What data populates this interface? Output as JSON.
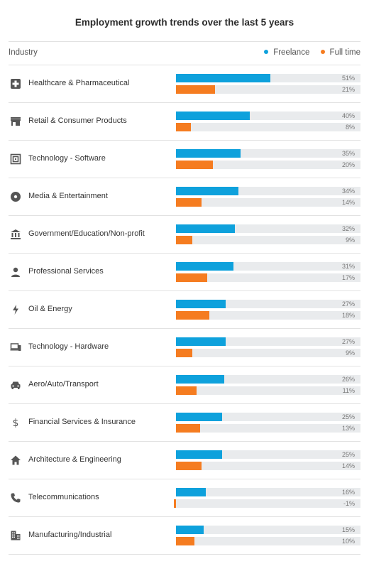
{
  "chart_data": {
    "type": "bar",
    "title": "Employment growth trends over the last 5 years",
    "column_header": "Industry",
    "legend_placement": "top-right",
    "grid": false,
    "xlim": [
      0,
      100
    ],
    "categories": [
      "Healthcare & Pharmaceutical",
      "Retail & Consumer Products",
      "Technology - Software",
      "Media & Entertainment",
      "Government/Education/Non-profit",
      "Professional Services",
      "Oil & Energy",
      "Technology - Hardware",
      "Aero/Auto/Transport",
      "Financial Services & Insurance",
      "Architecture & Engineering",
      "Telecommunications",
      "Manufacturing/Industrial"
    ],
    "category_icons": [
      "medical-cross-icon",
      "storefront-icon",
      "chip-icon",
      "disc-icon",
      "government-building-icon",
      "person-icon",
      "lightning-bolt-icon",
      "devices-icon",
      "car-icon",
      "dollar-sign-icon",
      "house-icon",
      "telephone-icon",
      "factory-building-icon"
    ],
    "series": [
      {
        "name": "Freelance",
        "color": "#0ea1dc",
        "values": [
          51,
          40,
          35,
          34,
          32,
          31,
          27,
          27,
          26,
          25,
          25,
          16,
          15
        ]
      },
      {
        "name": "Full time",
        "color": "#f57c20",
        "values": [
          21,
          8,
          20,
          14,
          9,
          17,
          18,
          9,
          11,
          13,
          14,
          -1,
          10
        ]
      }
    ],
    "value_labels": [
      [
        "51%",
        "40%",
        "35%",
        "34%",
        "32%",
        "31%",
        "27%",
        "27%",
        "26%",
        "25%",
        "25%",
        "16%",
        "15%"
      ],
      [
        "21%",
        "8%",
        "20%",
        "14%",
        "9%",
        "17%",
        "18%",
        "9%",
        "11%",
        "13%",
        "14%",
        "-1%",
        "10%"
      ]
    ]
  }
}
